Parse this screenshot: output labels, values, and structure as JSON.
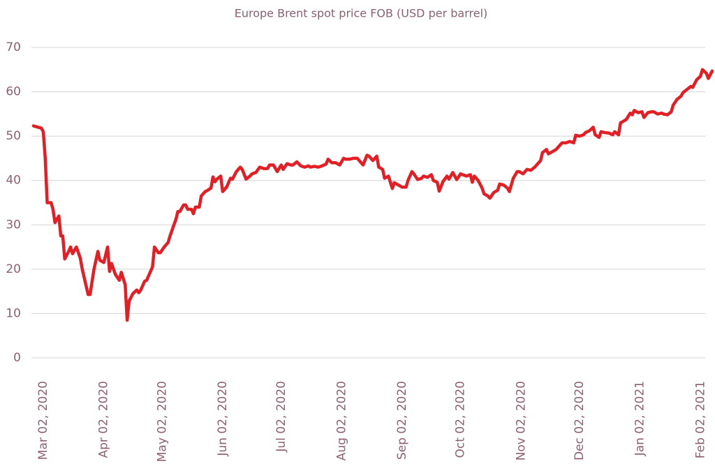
{
  "chart_data": {
    "type": "line",
    "title": "Europe Brent spot price FOB (USD per barrel)",
    "color": "#e31e24",
    "grid": true,
    "ylim": [
      0,
      70
    ],
    "yticks": [
      0,
      10,
      20,
      30,
      40,
      50,
      60,
      70
    ],
    "xlim": [
      "2020-03-02",
      "2021-02-13"
    ],
    "xticks": [
      {
        "value": "2020-03-02",
        "label": "Mar 02, 2020"
      },
      {
        "value": "2020-04-02",
        "label": "Apr 02, 2020"
      },
      {
        "value": "2020-05-02",
        "label": "May 02, 2020"
      },
      {
        "value": "2020-06-02",
        "label": "Jun 02, 2020"
      },
      {
        "value": "2020-07-02",
        "label": "Jul 02, 2020"
      },
      {
        "value": "2020-08-02",
        "label": "Aug 02, 2020"
      },
      {
        "value": "2020-09-02",
        "label": "Sep 02, 2020"
      },
      {
        "value": "2020-10-02",
        "label": "Oct 02, 2020"
      },
      {
        "value": "2020-11-02",
        "label": "Nov 02, 2020"
      },
      {
        "value": "2020-12-02",
        "label": "Dec 02, 2020"
      },
      {
        "value": "2021-01-02",
        "label": "Jan 02, 2021"
      },
      {
        "value": "2021-02-02",
        "label": "Feb 02, 2021"
      }
    ],
    "x": [
      "2020-03-02",
      "2020-03-06",
      "2020-03-07",
      "2020-03-08",
      "2020-03-09",
      "2020-03-11",
      "2020-03-12",
      "2020-03-13",
      "2020-03-15",
      "2020-03-16",
      "2020-03-17",
      "2020-03-18",
      "2020-03-20",
      "2020-03-21",
      "2020-03-22",
      "2020-03-24",
      "2020-03-26",
      "2020-03-27",
      "2020-03-30",
      "2020-03-31",
      "2020-04-02",
      "2020-04-04",
      "2020-04-05",
      "2020-04-07",
      "2020-04-09",
      "2020-04-10",
      "2020-04-11",
      "2020-04-13",
      "2020-04-15",
      "2020-04-16",
      "2020-04-18",
      "2020-04-19",
      "2020-04-20",
      "2020-04-22",
      "2020-04-24",
      "2020-04-25",
      "2020-04-26",
      "2020-04-28",
      "2020-04-29",
      "2020-04-30",
      "2020-05-02",
      "2020-05-03",
      "2020-05-05",
      "2020-05-06",
      "2020-05-08",
      "2020-05-10",
      "2020-05-11",
      "2020-05-13",
      "2020-05-14",
      "2020-05-15",
      "2020-05-16",
      "2020-05-18",
      "2020-05-19",
      "2020-05-20",
      "2020-05-22",
      "2020-05-23",
      "2020-05-24",
      "2020-05-26",
      "2020-05-27",
      "2020-05-29",
      "2020-05-30",
      "2020-06-01",
      "2020-06-02",
      "2020-06-03",
      "2020-06-04",
      "2020-06-06",
      "2020-06-07",
      "2020-06-09",
      "2020-06-11",
      "2020-06-12",
      "2020-06-14",
      "2020-06-16",
      "2020-06-17",
      "2020-06-19",
      "2020-06-21",
      "2020-06-22",
      "2020-06-24",
      "2020-06-26",
      "2020-06-28",
      "2020-06-30",
      "2020-07-01",
      "2020-07-03",
      "2020-07-05",
      "2020-07-07",
      "2020-07-08",
      "2020-07-10",
      "2020-07-12",
      "2020-07-13",
      "2020-07-15",
      "2020-07-17",
      "2020-07-19",
      "2020-07-21",
      "2020-07-22",
      "2020-07-24",
      "2020-07-26",
      "2020-07-28",
      "2020-07-30",
      "2020-07-31",
      "2020-08-02",
      "2020-08-04",
      "2020-08-06",
      "2020-08-08",
      "2020-08-09",
      "2020-08-11",
      "2020-08-13",
      "2020-08-15",
      "2020-08-16",
      "2020-08-18",
      "2020-08-20",
      "2020-08-21",
      "2020-08-23",
      "2020-08-25",
      "2020-08-26",
      "2020-08-28",
      "2020-08-29",
      "2020-08-31",
      "2020-09-02",
      "2020-09-03",
      "2020-09-05",
      "2020-09-07",
      "2020-09-09",
      "2020-09-10",
      "2020-09-12",
      "2020-09-13",
      "2020-09-15",
      "2020-09-17",
      "2020-09-18",
      "2020-09-20",
      "2020-09-22",
      "2020-09-23",
      "2020-09-25",
      "2020-09-26",
      "2020-09-28",
      "2020-09-30",
      "2020-10-01",
      "2020-10-03",
      "2020-10-05",
      "2020-10-07",
      "2020-10-08",
      "2020-10-10",
      "2020-10-12",
      "2020-10-13",
      "2020-10-14",
      "2020-10-16",
      "2020-10-18",
      "2020-10-19",
      "2020-10-21",
      "2020-10-22",
      "2020-10-24",
      "2020-10-26",
      "2020-10-27",
      "2020-10-29",
      "2020-10-31",
      "2020-11-01",
      "2020-11-03",
      "2020-11-05",
      "2020-11-06",
      "2020-11-08",
      "2020-11-10",
      "2020-11-12",
      "2020-11-14",
      "2020-11-15",
      "2020-11-17",
      "2020-11-18",
      "2020-11-20",
      "2020-11-21",
      "2020-11-23",
      "2020-11-25",
      "2020-11-26",
      "2020-11-28",
      "2020-11-30",
      "2020-12-02",
      "2020-12-04",
      "2020-12-05",
      "2020-12-07",
      "2020-12-09",
      "2020-12-10",
      "2020-12-12",
      "2020-12-14",
      "2020-12-15",
      "2020-12-17",
      "2020-12-18",
      "2020-12-20",
      "2020-12-22",
      "2020-12-24",
      "2020-12-25",
      "2020-12-27",
      "2020-12-28",
      "2020-12-30",
      "2020-12-31",
      "2021-01-02",
      "2021-01-03",
      "2021-01-04",
      "2021-01-06",
      "2021-01-08",
      "2021-01-09",
      "2021-01-11",
      "2021-01-13",
      "2021-01-14",
      "2021-01-16",
      "2021-01-18",
      "2021-01-19",
      "2021-01-21",
      "2021-01-23",
      "2021-01-24",
      "2021-01-26",
      "2021-01-28",
      "2021-01-29",
      "2021-01-31",
      "2021-02-02",
      "2021-02-03",
      "2021-02-05",
      "2021-02-07",
      "2021-02-08",
      "2021-02-10",
      "2021-02-11",
      "2021-02-13"
    ],
    "values": [
      52.3,
      51.8,
      51,
      45,
      35,
      35,
      33.5,
      30.5,
      32,
      27.5,
      27.5,
      22.3,
      24,
      25,
      23.5,
      25,
      22.5,
      20,
      14.3,
      14.3,
      20,
      24,
      22,
      21.5,
      25,
      19.5,
      21.3,
      18.8,
      17.5,
      19.3,
      16.5,
      8.5,
      12.8,
      14.5,
      15.3,
      14.7,
      15.3,
      17.3,
      17.5,
      18.5,
      20.5,
      25,
      23.7,
      23.7,
      25,
      26,
      27.5,
      30,
      31.2,
      33,
      33,
      34.5,
      34.5,
      33.5,
      33.5,
      32.5,
      34,
      34,
      36.5,
      37.5,
      37.7,
      38.3,
      40.8,
      39.7,
      40.3,
      41,
      37.5,
      38.5,
      40.5,
      40.3,
      42,
      43,
      42.5,
      40.3,
      41,
      41.5,
      41.8,
      43,
      42.7,
      42.7,
      43.5,
      43.5,
      42,
      43.5,
      42.5,
      43.8,
      43.5,
      43.5,
      44.2,
      43.3,
      43,
      43.3,
      43,
      43.2,
      43,
      43.3,
      43.7,
      44.8,
      44,
      44,
      43.5,
      45,
      44.8,
      44.8,
      45,
      45,
      44.5,
      43.5,
      45.7,
      45.5,
      44.5,
      45.5,
      43,
      42.5,
      40.5,
      41,
      38.2,
      39.5,
      39,
      38.5,
      38.5,
      40,
      42,
      41.5,
      40.2,
      40.5,
      41,
      40.7,
      41.3,
      40,
      39.6,
      37.6,
      39.8,
      41,
      40.3,
      41.8,
      40.2,
      41.5,
      41.3,
      41,
      41.3,
      39.6,
      41,
      40,
      38.3,
      37,
      36.5,
      36,
      37.3,
      37.8,
      39.2,
      39,
      38.3,
      37.5,
      40.5,
      42,
      42,
      41.5,
      42.5,
      42.3,
      43,
      43.5,
      44.5,
      46.3,
      47,
      46,
      46.5,
      47,
      47.5,
      48.5,
      48.5,
      48.8,
      48.5,
      50.2,
      50,
      50.3,
      50.8,
      51.2,
      52,
      50.3,
      49.7,
      51,
      50.8,
      50.7,
      50.3,
      51,
      50.3,
      53,
      53.5,
      53.8,
      55.2,
      54.8,
      55.8,
      55.3,
      55.5,
      54.2,
      55.3,
      55.5,
      55.5,
      55,
      55.2,
      55,
      54.8,
      55.5,
      57,
      58.3,
      59,
      59.8,
      60.5,
      61.2,
      61,
      62.7,
      63.5,
      65,
      64.2,
      63,
      64.7
    ]
  }
}
